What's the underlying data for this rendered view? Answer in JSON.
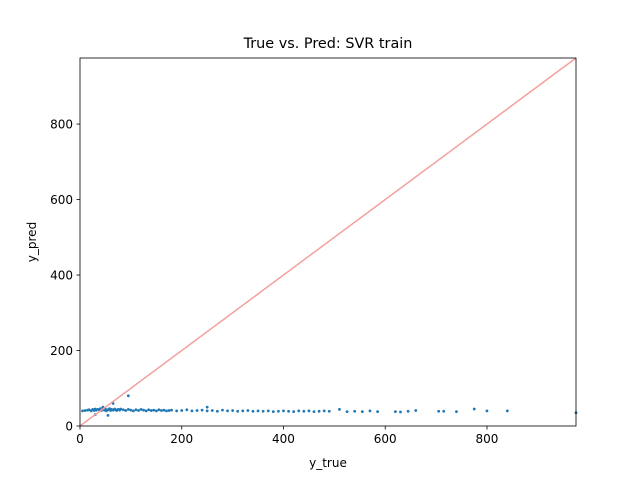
{
  "chart_data": {
    "type": "scatter",
    "title": "True vs. Pred: SVR train",
    "xlabel": "y_true",
    "ylabel": "y_pred",
    "xlim": [
      0,
      975
    ],
    "ylim": [
      0,
      975
    ],
    "xticks": [
      0,
      200,
      400,
      600,
      800
    ],
    "yticks": [
      0,
      200,
      400,
      600,
      800
    ],
    "xtick_labels": [
      "0",
      "200",
      "400",
      "600",
      "800"
    ],
    "ytick_labels": [
      "0",
      "200",
      "400",
      "600",
      "800"
    ],
    "grid": false,
    "legend": "none",
    "colors": {
      "points": "#1f77b4",
      "reference_line": "#f4a09c"
    },
    "reference_line": {
      "label": "",
      "points": [
        [
          0,
          0
        ],
        [
          975,
          975
        ]
      ]
    },
    "series": [
      {
        "name": "",
        "x": [
          5,
          10,
          15,
          18,
          22,
          25,
          28,
          30,
          32,
          35,
          38,
          40,
          42,
          45,
          48,
          50,
          52,
          55,
          58,
          60,
          62,
          65,
          68,
          70,
          72,
          75,
          78,
          80,
          85,
          90,
          95,
          100,
          105,
          110,
          115,
          120,
          125,
          130,
          135,
          140,
          145,
          150,
          155,
          160,
          165,
          170,
          175,
          180,
          190,
          200,
          210,
          220,
          230,
          240,
          250,
          260,
          270,
          280,
          290,
          300,
          310,
          320,
          330,
          340,
          350,
          360,
          370,
          380,
          390,
          400,
          410,
          420,
          430,
          440,
          450,
          460,
          470,
          480,
          490,
          510,
          525,
          540,
          555,
          570,
          585,
          620,
          630,
          645,
          660,
          705,
          715,
          740,
          775,
          800,
          840,
          975,
          30,
          45,
          55,
          65,
          95,
          250
        ],
        "y": [
          40,
          41,
          42,
          43,
          40,
          44,
          41,
          45,
          42,
          44,
          43,
          46,
          41,
          44,
          42,
          45,
          40,
          43,
          46,
          41,
          44,
          42,
          45,
          43,
          41,
          44,
          42,
          45,
          43,
          41,
          44,
          42,
          40,
          43,
          41,
          44,
          42,
          40,
          43,
          41,
          42,
          40,
          43,
          41,
          42,
          40,
          41,
          42,
          40,
          41,
          43,
          40,
          41,
          42,
          40,
          41,
          39,
          42,
          40,
          41,
          39,
          40,
          41,
          39,
          40,
          39,
          40,
          38,
          39,
          40,
          39,
          38,
          40,
          39,
          40,
          38,
          39,
          40,
          39,
          44,
          38,
          39,
          38,
          40,
          38,
          38,
          37,
          39,
          41,
          39,
          39,
          38,
          45,
          40,
          40,
          35,
          30,
          50,
          28,
          60,
          80,
          50
        ]
      }
    ]
  }
}
